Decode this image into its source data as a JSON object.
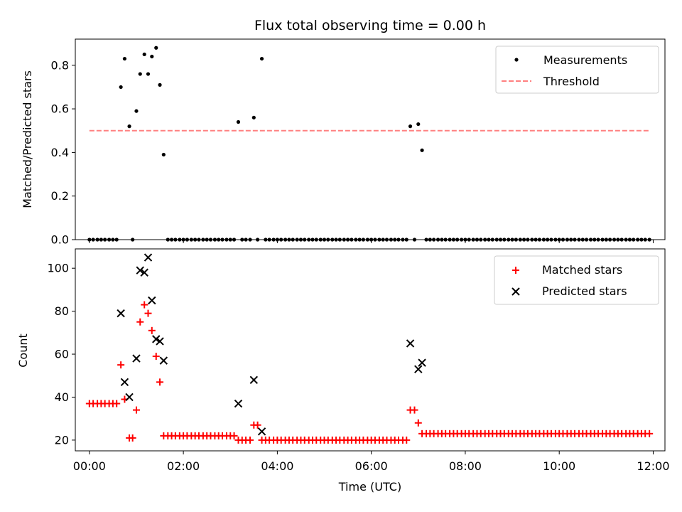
{
  "chart_data": [
    {
      "type": "scatter",
      "title": "Flux total observing time = 0.00 h",
      "xlabel": "",
      "ylabel": "Matched/Predicted stars",
      "xlim_hours": [
        -0.3,
        12.25
      ],
      "ylim": [
        0,
        0.92
      ],
      "yticks": [
        "0.0",
        "0.2",
        "0.4",
        "0.6",
        "0.8"
      ],
      "ytick_values": [
        0.0,
        0.2,
        0.4,
        0.6,
        0.8
      ],
      "legend_position": "top-right",
      "series": [
        {
          "name": "Measurements",
          "marker": "dot",
          "color": "#000000",
          "x_hours": [
            0.0,
            0.08,
            0.17,
            0.25,
            0.33,
            0.42,
            0.5,
            0.58,
            0.67,
            0.75,
            0.85,
            0.92,
            1.0,
            1.08,
            1.17,
            1.25,
            1.33,
            1.42,
            1.5,
            1.58,
            1.67,
            1.75,
            1.83,
            1.92,
            2.0,
            2.08,
            2.17,
            2.25,
            2.33,
            2.42,
            2.5,
            2.58,
            2.67,
            2.75,
            2.83,
            2.92,
            3.0,
            3.08,
            3.17,
            3.25,
            3.33,
            3.42,
            3.5,
            3.58,
            3.67,
            3.75,
            3.83,
            3.92,
            4.0,
            4.08,
            4.17,
            4.25,
            4.33,
            4.42,
            4.5,
            4.58,
            4.67,
            4.75,
            4.83,
            4.92,
            5.0,
            5.08,
            5.17,
            5.25,
            5.33,
            5.42,
            5.5,
            5.58,
            5.67,
            5.75,
            5.83,
            5.92,
            6.0,
            6.08,
            6.17,
            6.25,
            6.33,
            6.42,
            6.5,
            6.58,
            6.67,
            6.75,
            6.83,
            6.92,
            7.0,
            7.08,
            7.17,
            7.25,
            7.33,
            7.42,
            7.5,
            7.58,
            7.67,
            7.75,
            7.83,
            7.92,
            8.0,
            8.08,
            8.17,
            8.25,
            8.33,
            8.42,
            8.5,
            8.58,
            8.67,
            8.75,
            8.83,
            8.92,
            9.0,
            9.08,
            9.17,
            9.25,
            9.33,
            9.42,
            9.5,
            9.58,
            9.67,
            9.75,
            9.83,
            9.92,
            10.0,
            10.08,
            10.17,
            10.25,
            10.33,
            10.42,
            10.5,
            10.58,
            10.67,
            10.75,
            10.83,
            10.92,
            11.0,
            11.08,
            11.17,
            11.25,
            11.33,
            11.42,
            11.5,
            11.58,
            11.67,
            11.75,
            11.83,
            11.92
          ],
          "y": [
            0,
            0,
            0,
            0,
            0,
            0,
            0,
            0,
            0.7,
            0.83,
            0.52,
            0,
            0.59,
            0.76,
            0.85,
            0.76,
            0.84,
            0.88,
            0.71,
            0.39,
            0,
            0,
            0,
            0,
            0,
            0,
            0,
            0,
            0,
            0,
            0,
            0,
            0,
            0,
            0,
            0,
            0,
            0,
            0.54,
            0,
            0,
            0,
            0.56,
            0,
            0.83,
            0,
            0,
            0,
            0,
            0,
            0,
            0,
            0,
            0,
            0,
            0,
            0,
            0,
            0,
            0,
            0,
            0,
            0,
            0,
            0,
            0,
            0,
            0,
            0,
            0,
            0,
            0,
            0,
            0,
            0,
            0,
            0,
            0,
            0,
            0,
            0,
            0,
            0.52,
            0,
            0.53,
            0.41,
            0,
            0,
            0,
            0,
            0,
            0,
            0,
            0,
            0,
            0,
            0,
            0,
            0,
            0,
            0,
            0,
            0,
            0,
            0,
            0,
            0,
            0,
            0,
            0,
            0,
            0,
            0,
            0,
            0,
            0,
            0,
            0,
            0,
            0,
            0,
            0,
            0,
            0,
            0,
            0,
            0,
            0,
            0,
            0,
            0,
            0,
            0,
            0,
            0,
            0,
            0,
            0,
            0,
            0,
            0,
            0,
            0,
            0
          ]
        },
        {
          "name": "Threshold",
          "marker": "dashed-line",
          "color": "#ff8080",
          "x_hours": [
            0.0,
            11.92
          ],
          "y": [
            0.5,
            0.5
          ]
        }
      ]
    },
    {
      "type": "scatter",
      "title": "",
      "xlabel": "Time (UTC)",
      "ylabel": "Count",
      "xlim_hours": [
        -0.3,
        12.25
      ],
      "ylim": [
        15,
        109
      ],
      "yticks": [
        "20",
        "40",
        "60",
        "80",
        "100"
      ],
      "ytick_values": [
        20,
        40,
        60,
        80,
        100
      ],
      "xticks": [
        "00:00",
        "02:00",
        "04:00",
        "06:00",
        "08:00",
        "10:00",
        "12:00"
      ],
      "xtick_values": [
        0,
        2,
        4,
        6,
        8,
        10,
        12
      ],
      "legend_position": "top-right",
      "series": [
        {
          "name": "Matched stars",
          "marker": "plus",
          "color": "#ff0000",
          "x_hours": [
            0.0,
            0.08,
            0.17,
            0.25,
            0.33,
            0.42,
            0.5,
            0.58,
            0.67,
            0.75,
            0.85,
            0.92,
            1.0,
            1.08,
            1.17,
            1.25,
            1.33,
            1.42,
            1.5,
            1.58,
            1.67,
            1.75,
            1.83,
            1.92,
            2.0,
            2.08,
            2.17,
            2.25,
            2.33,
            2.42,
            2.5,
            2.58,
            2.67,
            2.75,
            2.83,
            2.92,
            3.0,
            3.08,
            3.17,
            3.25,
            3.33,
            3.42,
            3.5,
            3.58,
            3.67,
            3.75,
            3.83,
            3.92,
            4.0,
            4.08,
            4.17,
            4.25,
            4.33,
            4.42,
            4.5,
            4.58,
            4.67,
            4.75,
            4.83,
            4.92,
            5.0,
            5.08,
            5.17,
            5.25,
            5.33,
            5.42,
            5.5,
            5.58,
            5.67,
            5.75,
            5.83,
            5.92,
            6.0,
            6.08,
            6.17,
            6.25,
            6.33,
            6.42,
            6.5,
            6.58,
            6.67,
            6.75,
            6.83,
            6.92,
            7.0,
            7.08,
            7.17,
            7.25,
            7.33,
            7.42,
            7.5,
            7.58,
            7.67,
            7.75,
            7.83,
            7.92,
            8.0,
            8.08,
            8.17,
            8.25,
            8.33,
            8.42,
            8.5,
            8.58,
            8.67,
            8.75,
            8.83,
            8.92,
            9.0,
            9.08,
            9.17,
            9.25,
            9.33,
            9.42,
            9.5,
            9.58,
            9.67,
            9.75,
            9.83,
            9.92,
            10.0,
            10.08,
            10.17,
            10.25,
            10.33,
            10.42,
            10.5,
            10.58,
            10.67,
            10.75,
            10.83,
            10.92,
            11.0,
            11.08,
            11.17,
            11.25,
            11.33,
            11.42,
            11.5,
            11.58,
            11.67,
            11.75,
            11.83,
            11.92
          ],
          "y": [
            37,
            37,
            37,
            37,
            37,
            37,
            37,
            37,
            55,
            39,
            21,
            21,
            34,
            75,
            83,
            79,
            71,
            59,
            47,
            22,
            22,
            22,
            22,
            22,
            22,
            22,
            22,
            22,
            22,
            22,
            22,
            22,
            22,
            22,
            22,
            22,
            22,
            22,
            20,
            20,
            20,
            20,
            27,
            27,
            20,
            20,
            20,
            20,
            20,
            20,
            20,
            20,
            20,
            20,
            20,
            20,
            20,
            20,
            20,
            20,
            20,
            20,
            20,
            20,
            20,
            20,
            20,
            20,
            20,
            20,
            20,
            20,
            20,
            20,
            20,
            20,
            20,
            20,
            20,
            20,
            20,
            20,
            34,
            34,
            28,
            23,
            23,
            23,
            23,
            23,
            23,
            23,
            23,
            23,
            23,
            23,
            23,
            23,
            23,
            23,
            23,
            23,
            23,
            23,
            23,
            23,
            23,
            23,
            23,
            23,
            23,
            23,
            23,
            23,
            23,
            23,
            23,
            23,
            23,
            23,
            23,
            23,
            23,
            23,
            23,
            23,
            23,
            23,
            23,
            23,
            23,
            23,
            23,
            23,
            23,
            23,
            23,
            23,
            23,
            23,
            23,
            23,
            23,
            23
          ]
        },
        {
          "name": "Predicted stars",
          "marker": "x",
          "color": "#000000",
          "x_hours": [
            0.67,
            0.75,
            0.85,
            1.0,
            1.08,
            1.17,
            1.25,
            1.33,
            1.42,
            1.5,
            1.58,
            3.17,
            3.5,
            3.67,
            6.83,
            7.0,
            7.08
          ],
          "y": [
            79,
            47,
            40,
            58,
            99,
            98,
            105,
            85,
            67,
            66,
            57,
            37,
            48,
            24,
            65,
            53,
            56
          ]
        }
      ]
    }
  ]
}
